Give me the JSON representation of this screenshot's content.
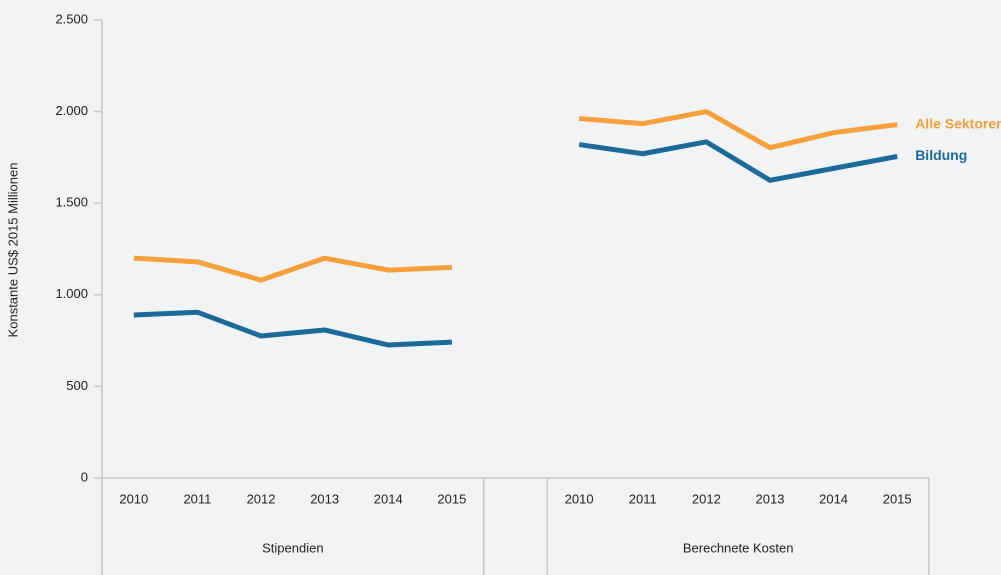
{
  "chart_data": {
    "type": "line",
    "y_label": "Konstante US$ 2015 Millionen",
    "categories": [
      "2010",
      "2011",
      "2012",
      "2013",
      "2014",
      "2015",
      null,
      "2010",
      "2011",
      "2012",
      "2013",
      "2014",
      "2015"
    ],
    "groups": [
      "Stipendien",
      "Berechnete Kosten"
    ],
    "series": [
      {
        "name": "Alle Sektoren",
        "color": "#f5a03a",
        "values": [
          1200,
          1180,
          1080,
          1200,
          1135,
          1150,
          null,
          1962,
          1934,
          2000,
          1803,
          1885,
          1929
        ]
      },
      {
        "name": "Bildung",
        "color": "#1b6a9a",
        "values": [
          890,
          905,
          775,
          808,
          726,
          742,
          null,
          1820,
          1770,
          1835,
          1625,
          1690,
          1755
        ]
      }
    ],
    "ylim": [
      0,
      2500
    ],
    "yticks": [
      0,
      {
        "value": 500,
        "label": "500"
      },
      {
        "value": 1000,
        "label": "1.000"
      },
      {
        "value": 1500,
        "label": "1.500"
      },
      {
        "value": 2000,
        "label": "2.000"
      },
      {
        "value": 2500,
        "label": "2.500"
      }
    ],
    "legend": "end"
  }
}
